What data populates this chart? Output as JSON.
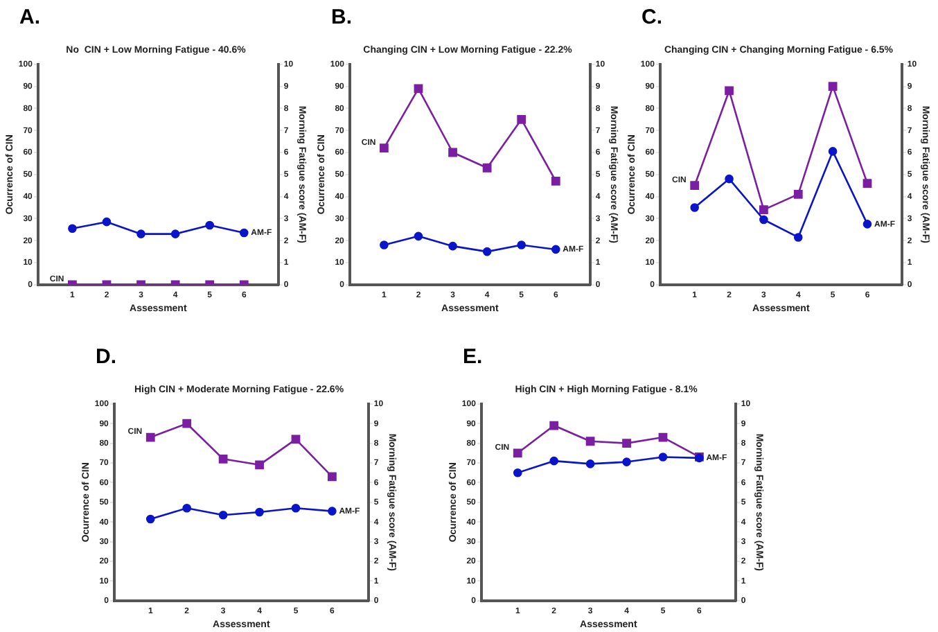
{
  "chart_data": [
    {
      "type": "line",
      "title": "No  CIN + Low Morning Fatigue - 40.6%",
      "annotations": [
        "A."
      ],
      "xlabel": "Assessment",
      "ylabel": "Ocurrence of CIN",
      "y2label": "Morning Fatigue score (AM-F)",
      "x": [
        1,
        2,
        3,
        4,
        5,
        6
      ],
      "xlim": [
        0,
        7
      ],
      "xticks": [
        1,
        2,
        3,
        4,
        5,
        6
      ],
      "ylim": [
        0,
        100
      ],
      "yticks": [
        0,
        10,
        20,
        30,
        40,
        50,
        60,
        70,
        80,
        90,
        100
      ],
      "y2lim": [
        0,
        10
      ],
      "y2ticks": [
        0,
        1,
        2,
        3,
        4,
        5,
        6,
        7,
        8,
        9,
        10
      ],
      "grid": false,
      "legend": false,
      "series": [
        {
          "name": "CIN",
          "color": "#7b1fa2",
          "marker": "square",
          "values": [
            0,
            0,
            0,
            0,
            0,
            0
          ]
        },
        {
          "name": "AM-F",
          "color": "#0a14c8",
          "marker": "circle",
          "axis": "y2",
          "values": [
            2.55,
            2.85,
            2.3,
            2.3,
            2.7,
            2.35
          ]
        }
      ]
    },
    {
      "type": "line",
      "title": "Changing CIN + Low Morning Fatigue - 22.2%",
      "annotations": [
        "B."
      ],
      "xlabel": "Assessment",
      "ylabel": "Ocurrence of CIN",
      "y2label": "Morning Fatigue score (AM-F)",
      "x": [
        1,
        2,
        3,
        4,
        5,
        6
      ],
      "xlim": [
        0,
        7
      ],
      "xticks": [
        1,
        2,
        3,
        4,
        5,
        6
      ],
      "ylim": [
        0,
        100
      ],
      "yticks": [
        0,
        10,
        20,
        30,
        40,
        50,
        60,
        70,
        80,
        90,
        100
      ],
      "y2lim": [
        0,
        10
      ],
      "y2ticks": [
        0,
        1,
        2,
        3,
        4,
        5,
        6,
        7,
        8,
        9,
        10
      ],
      "grid": false,
      "legend": false,
      "series": [
        {
          "name": "CIN",
          "color": "#7b1fa2",
          "marker": "square",
          "values": [
            62,
            89,
            60,
            53,
            75,
            47
          ]
        },
        {
          "name": "AM-F",
          "color": "#0a14c8",
          "marker": "circle",
          "axis": "y2",
          "values": [
            1.8,
            2.2,
            1.75,
            1.5,
            1.8,
            1.6
          ]
        }
      ]
    },
    {
      "type": "line",
      "title": "Changing CIN + Changing Morning Fatigue - 6.5%",
      "annotations": [
        "C."
      ],
      "xlabel": "Assessment",
      "ylabel": "Ocurrence of CIN",
      "y2label": "Morning Fatigue score (AM-F)",
      "x": [
        1,
        2,
        3,
        4,
        5,
        6
      ],
      "xlim": [
        0,
        7
      ],
      "xticks": [
        1,
        2,
        3,
        4,
        5,
        6
      ],
      "ylim": [
        0,
        100
      ],
      "yticks": [
        0,
        10,
        20,
        30,
        40,
        50,
        60,
        70,
        80,
        90,
        100
      ],
      "y2lim": [
        0,
        10
      ],
      "y2ticks": [
        0,
        1,
        2,
        3,
        4,
        5,
        6,
        7,
        8,
        9,
        10
      ],
      "grid": false,
      "legend": false,
      "series": [
        {
          "name": "CIN",
          "color": "#7b1fa2",
          "marker": "square",
          "values": [
            45,
            88,
            34,
            41,
            90,
            46
          ]
        },
        {
          "name": "AM-F",
          "color": "#0a14c8",
          "marker": "circle",
          "axis": "y2",
          "values": [
            3.5,
            4.8,
            2.95,
            2.15,
            6.05,
            2.75
          ]
        }
      ]
    },
    {
      "type": "line",
      "title": "High CIN + Moderate Morning Fatigue - 22.6%",
      "annotations": [
        "D."
      ],
      "xlabel": "Assessment",
      "ylabel": "Ocurrence of CIN",
      "y2label": "Morning Fatigue score (AM-F)",
      "x": [
        1,
        2,
        3,
        4,
        5,
        6
      ],
      "xlim": [
        0,
        7
      ],
      "xticks": [
        1,
        2,
        3,
        4,
        5,
        6
      ],
      "ylim": [
        0,
        100
      ],
      "yticks": [
        0,
        10,
        20,
        30,
        40,
        50,
        60,
        70,
        80,
        90,
        100
      ],
      "y2lim": [
        0,
        10
      ],
      "y2ticks": [
        0,
        1,
        2,
        3,
        4,
        5,
        6,
        7,
        8,
        9,
        10
      ],
      "grid": false,
      "legend": false,
      "series": [
        {
          "name": "CIN",
          "color": "#7b1fa2",
          "marker": "square",
          "values": [
            83,
            90,
            72,
            69,
            82,
            63
          ]
        },
        {
          "name": "AM-F",
          "color": "#0a14c8",
          "marker": "circle",
          "axis": "y2",
          "values": [
            4.15,
            4.7,
            4.35,
            4.5,
            4.7,
            4.55
          ]
        }
      ]
    },
    {
      "type": "line",
      "title": "High CIN + High Morning Fatigue - 8.1%",
      "annotations": [
        "E."
      ],
      "xlabel": "Assessment",
      "ylabel": "Ocurrence of CIN",
      "y2label": "Morning Fatigue score (AM-F)",
      "x": [
        1,
        2,
        3,
        4,
        5,
        6
      ],
      "xlim": [
        0,
        7
      ],
      "xticks": [
        1,
        2,
        3,
        4,
        5,
        6
      ],
      "ylim": [
        0,
        100
      ],
      "yticks": [
        0,
        10,
        20,
        30,
        40,
        50,
        60,
        70,
        80,
        90,
        100
      ],
      "y2lim": [
        0,
        10
      ],
      "y2ticks": [
        0,
        1,
        2,
        3,
        4,
        5,
        6,
        7,
        8,
        9,
        10
      ],
      "grid": false,
      "legend": false,
      "series": [
        {
          "name": "CIN",
          "color": "#7b1fa2",
          "marker": "square",
          "values": [
            75,
            89,
            81,
            80,
            83,
            73
          ]
        },
        {
          "name": "AM-F",
          "color": "#0a14c8",
          "marker": "circle",
          "axis": "y2",
          "values": [
            6.5,
            7.1,
            6.95,
            7.05,
            7.3,
            7.25
          ]
        }
      ]
    }
  ]
}
